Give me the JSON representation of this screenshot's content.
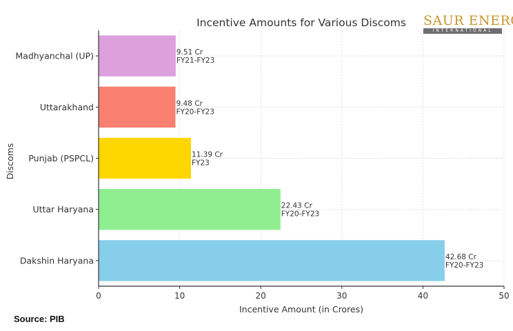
{
  "chart_data": {
    "type": "bar",
    "orientation": "horizontal",
    "title": "Incentive Amounts for Various Discoms",
    "xlabel": "Incentive Amount (in Crores)",
    "ylabel": "Discoms",
    "xlim": [
      0,
      50
    ],
    "xticks": [
      "0",
      "10",
      "20",
      "30",
      "40",
      "50"
    ],
    "grid": true,
    "categories": [
      "Dakshin Haryana",
      "Uttar Haryana",
      "Punjab (PSPCL)",
      "Uttarakhand",
      "Madhyanchal (UP)"
    ],
    "values": [
      42.68,
      22.43,
      11.39,
      9.48,
      9.51
    ],
    "labels": [
      [
        "42.68 Cr",
        "FY20-FY23"
      ],
      [
        "22.43 Cr",
        "FY20-FY23"
      ],
      [
        "11.39 Cr",
        "FY23"
      ],
      [
        "9.48 Cr",
        "FY20-FY23"
      ],
      [
        "9.51 Cr",
        "FY21-FY23"
      ]
    ],
    "colors": [
      "#87ceeb",
      "#90ee90",
      "#ffd700",
      "#fa8072",
      "#dda0dd"
    ]
  },
  "logo": {
    "main": "SAUR ENERGY",
    "sub": "INTERNATIONAL"
  },
  "source": "Source: PIB"
}
